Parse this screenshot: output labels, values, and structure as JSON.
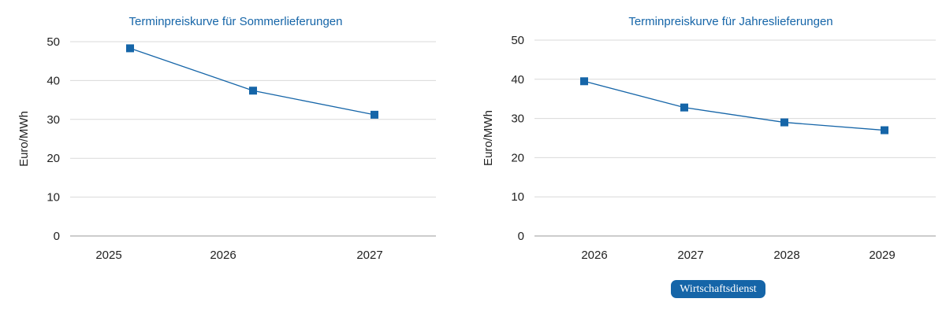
{
  "colors": {
    "title": "#1565a8",
    "series": "#1565a8",
    "grid": "#d9d9d9",
    "badge_bg": "#1565a8"
  },
  "badge": {
    "label": "Wirtschaftsdienst"
  },
  "chart_data": [
    {
      "type": "line",
      "title": "Terminpreiskurve für Sommerlieferungen",
      "ylabel": "Euro/MWh",
      "xlabel": "",
      "categories": [
        "2025",
        "2026",
        "2027"
      ],
      "series": [
        {
          "values": [
            48.3,
            37.4,
            31.2
          ]
        }
      ],
      "ylim": [
        0,
        50
      ],
      "yticks": [
        0,
        10,
        20,
        30,
        40,
        50
      ],
      "grid": "horizontal",
      "marker": "square"
    },
    {
      "type": "line",
      "title": "Terminpreiskurve für Jahreslieferungen",
      "ylabel": "Euro/MWh",
      "xlabel": "",
      "categories": [
        "2026",
        "2027",
        "2028",
        "2029"
      ],
      "series": [
        {
          "values": [
            39.5,
            32.8,
            29.0,
            27.0
          ]
        }
      ],
      "ylim": [
        0,
        50
      ],
      "yticks": [
        0,
        10,
        20,
        30,
        40,
        50
      ],
      "grid": "horizontal",
      "marker": "square"
    }
  ]
}
